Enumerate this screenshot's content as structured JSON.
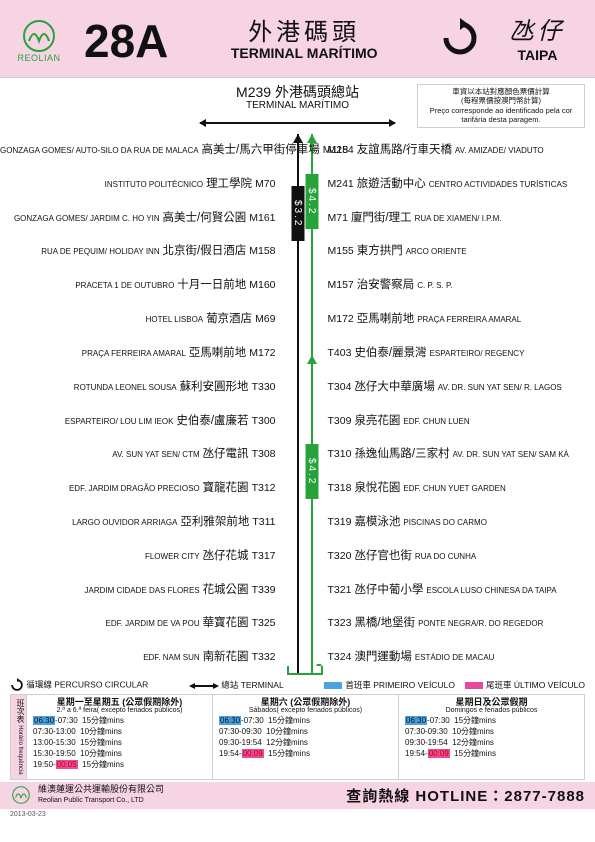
{
  "brand_name": "REOLIAN",
  "route_number": "28A",
  "dest_a": {
    "zh": "外港碼頭",
    "en": "TERMINAL MARÍTIMO"
  },
  "dest_b": {
    "zh": "氹仔",
    "en": "TAIPA"
  },
  "terminal": {
    "code_zh": "M239 外港碼頭總站",
    "en": "TERMINAL MARÍTIMO"
  },
  "fare_note": {
    "l1": "車資以本站對應顏色票價計算",
    "l2": "(每程票價按澳門幣計算)",
    "l3": "Preço corresponde ao identificado pela cor tarifária desta paragem."
  },
  "fares": {
    "black": "$3.2",
    "green_top": "$4.2",
    "green_mid": "$4.2"
  },
  "left_stops": [
    {
      "en": "GONZAGA GOMES/ AUTO-SILO DA RUA DE MALACA",
      "zh": "高美士/馬六甲街停車場",
      "code": "M118"
    },
    {
      "en": "INSTITUTO POLITÉCNICO",
      "zh": "理工學院",
      "code": "M70"
    },
    {
      "en": "GONZAGA GOMES/ JARDIM C. HO YIN",
      "zh": "高美士/何賢公園",
      "code": "M161"
    },
    {
      "en": "RUA DE PEQUIM/ HOLIDAY INN",
      "zh": "北京街/假日酒店",
      "code": "M158"
    },
    {
      "en": "PRACETA 1 DE OUTUBRO",
      "zh": "十月一日前地",
      "code": "M160"
    },
    {
      "en": "HOTEL LISBOA",
      "zh": "葡京酒店",
      "code": "M69"
    },
    {
      "en": "PRAÇA FERREIRA AMARAL",
      "zh": "亞馬喇前地",
      "code": "M172"
    },
    {
      "en": "ROTUNDA LEONEL SOUSA",
      "zh": "蘇利安圓形地",
      "code": "T330"
    },
    {
      "en": "ESPARTEIRO/ LOU LIM IEOK",
      "zh": "史伯泰/盧廉若",
      "code": "T300"
    },
    {
      "en": "AV. SUN YAT SEN/ CTM",
      "zh": "氹仔電訊",
      "code": "T308"
    },
    {
      "en": "EDF. JARDIM DRAGÃO PRECIOSO",
      "zh": "寶龍花園",
      "code": "T312"
    },
    {
      "en": "LARGO OUVIDOR ARRIAGA",
      "zh": "亞利雅架前地",
      "code": "T311"
    },
    {
      "en": "FLOWER CITY",
      "zh": "氹仔花城",
      "code": "T317"
    },
    {
      "en": "JARDIM CIDADE DAS FLORES",
      "zh": "花城公園",
      "code": "T339"
    },
    {
      "en": "EDF. JARDIM DE VA POU",
      "zh": "華寶花園",
      "code": "T325"
    },
    {
      "en": "EDF. NAM SUN",
      "zh": "南新花園",
      "code": "T332"
    }
  ],
  "right_stops": [
    {
      "code": "M254",
      "zh": "友誼馬路/行車天橋",
      "en": "AV. AMIZADE/ VIADUTO"
    },
    {
      "code": "M241",
      "zh": "旅遊活動中心",
      "en": "CENTRO ACTIVIDADES TURÍSTICAS"
    },
    {
      "code": "M71",
      "zh": "廈門街/理工",
      "en": "RUA DE XIAMEN/ I.P.M."
    },
    {
      "code": "M155",
      "zh": "東方拱門",
      "en": "ARCO ORIENTE"
    },
    {
      "code": "M157",
      "zh": "治安警察局",
      "en": "C. P. S. P."
    },
    {
      "code": "M172",
      "zh": "亞馬喇前地",
      "en": "PRAÇA FERREIRA AMARAL"
    },
    {
      "code": "T403",
      "zh": "史伯泰/麗景灣",
      "en": "ESPARTEIRO/ REGENCY"
    },
    {
      "code": "T304",
      "zh": "氹仔大中華廣場",
      "en": "AV. DR. SUN YAT SEN/ R. LAGOS"
    },
    {
      "code": "T309",
      "zh": "泉亮花園",
      "en": "EDF. CHUN LUEN"
    },
    {
      "code": "T310",
      "zh": "孫逸仙馬路/三家村",
      "en": "AV. DR. SUN YAT SEN/ SAM KÁ"
    },
    {
      "code": "T318",
      "zh": "泉悅花園",
      "en": "EDF. CHUN YUET GARDEN"
    },
    {
      "code": "T319",
      "zh": "嘉模泳池",
      "en": "PISCINAS DO CARMO"
    },
    {
      "code": "T320",
      "zh": "氹仔官也街",
      "en": "RUA DO CUNHA"
    },
    {
      "code": "T321",
      "zh": "氹仔中葡小學",
      "en": "ESCOLA LUSO CHINESA DA TAIPA"
    },
    {
      "code": "T323",
      "zh": "黑橋/地堡街",
      "en": "PONTE NEGRA/R. DO REGEDOR"
    },
    {
      "code": "T324",
      "zh": "澳門運動場",
      "en": "ESTÁDIO DE MACAU"
    }
  ],
  "legend": {
    "circular_zh": "循環線",
    "circular_en": "PERCURSO CIRCULAR",
    "terminal_zh": "總站",
    "terminal_en": "TERMINAL",
    "first_zh": "首班車",
    "first_en": "PRIMEIRO VEÍCULO",
    "last_zh": "尾班車",
    "last_en": "ÚLTIMO VEÍCULO"
  },
  "timetable": {
    "side_zh": "班次表",
    "side_en": "Horário frequência",
    "cols": [
      {
        "head": "星期一至星期五 (公眾假期除外)",
        "sub": "2.ª a 6.ª feira( excepto feriados públicos)",
        "rows": [
          {
            "t": "06:30-07:30",
            "freq": "15分鐘mins",
            "hl": "blue"
          },
          {
            "t": "07:30-13:00",
            "freq": "10分鐘mins"
          },
          {
            "t": "13:00-15:30",
            "freq": "15分鐘mins"
          },
          {
            "t": "15:30-19:50",
            "freq": "10分鐘mins"
          },
          {
            "t": "19:50-00:05",
            "freq": "15分鐘mins",
            "hl": "pink",
            "red": true
          }
        ]
      },
      {
        "head": "星期六 (公眾假期除外)",
        "sub": "Sábados( excepto feriados públicos)",
        "rows": [
          {
            "t": "06:30-07:30",
            "freq": "15分鐘mins",
            "hl": "blue"
          },
          {
            "t": "07:30-09:30",
            "freq": "10分鐘mins"
          },
          {
            "t": "09:30-19:54",
            "freq": "12分鐘mins"
          },
          {
            "t": "19:54-00:09",
            "freq": "15分鐘mins",
            "hl": "pink",
            "red": true
          }
        ]
      },
      {
        "head": "星期日及公眾假期",
        "sub": "Domingos e feriados públicos",
        "rows": [
          {
            "t": "06:30-07:30",
            "freq": "15分鐘mins",
            "hl": "blue"
          },
          {
            "t": "07:30-09:30",
            "freq": "10分鐘mins"
          },
          {
            "t": "09:30-19:54",
            "freq": "12分鐘mins"
          },
          {
            "t": "19:54-00:09",
            "freq": "15分鐘mins",
            "hl": "pink",
            "red": true
          }
        ]
      }
    ]
  },
  "footer": {
    "company_zh": "維澳蓮運公共運輸股份有限公司",
    "company_en": "Reolian Public Transport Co., LTD",
    "hotline_label": "查詢熱線 HOTLINE：",
    "hotline_no": "2877-7888"
  },
  "print_date": "2013-03-23"
}
